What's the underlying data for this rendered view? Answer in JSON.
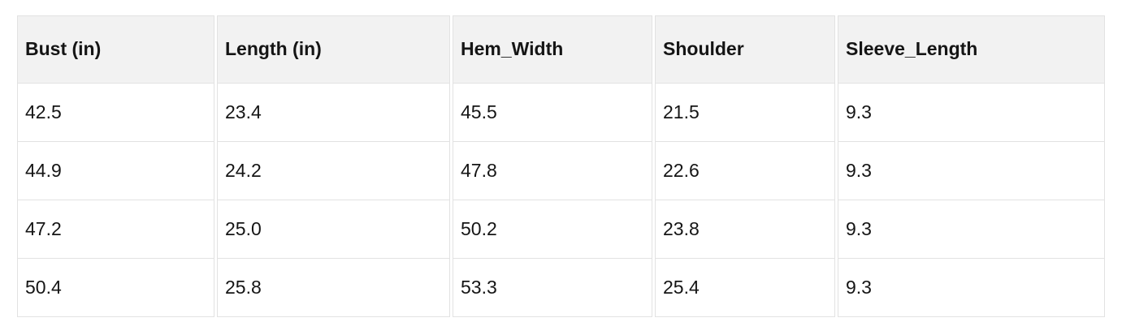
{
  "table": {
    "columns": [
      "Bust (in)",
      "Length (in)",
      "Hem_Width",
      "Shoulder",
      "Sleeve_Length"
    ],
    "rows": [
      [
        "42.5",
        "23.4",
        "45.5",
        "21.5",
        "9.3"
      ],
      [
        "44.9",
        "24.2",
        "47.8",
        "22.6",
        "9.3"
      ],
      [
        "47.2",
        "25.0",
        "50.2",
        "23.8",
        "9.3"
      ],
      [
        "50.4",
        "25.8",
        "53.3",
        "25.4",
        "9.3"
      ]
    ]
  },
  "chart_data": {
    "type": "table",
    "title": "",
    "columns": [
      "Bust (in)",
      "Length (in)",
      "Hem_Width",
      "Shoulder",
      "Sleeve_Length"
    ],
    "rows": [
      [
        42.5,
        23.4,
        45.5,
        21.5,
        9.3
      ],
      [
        44.9,
        24.2,
        47.8,
        22.6,
        9.3
      ],
      [
        47.2,
        25.0,
        50.2,
        23.8,
        9.3
      ],
      [
        50.4,
        25.8,
        53.3,
        25.4,
        9.3
      ]
    ]
  },
  "colors": {
    "header_bg": "#f2f2f2",
    "border": "#e2e2e2",
    "text": "#151515",
    "page_bg": "#ffffff"
  }
}
